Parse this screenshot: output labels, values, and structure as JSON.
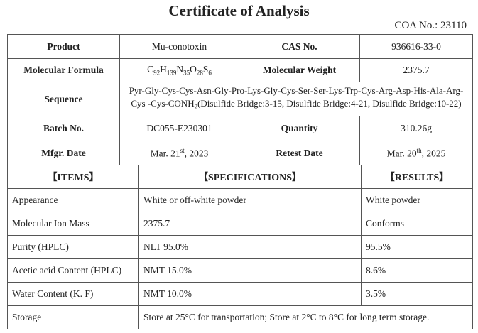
{
  "header": {
    "title": "Certificate of Analysis",
    "coa_no": "COA No.: 23110"
  },
  "info": {
    "product_label": "Product",
    "product": "Mu-conotoxin",
    "cas_label": "CAS No.",
    "cas": "936616-33-0",
    "formula_label": "Molecular Formula",
    "formula": [
      "C",
      "92",
      "H",
      "139",
      "N",
      "35",
      "O",
      "28",
      "S",
      "6"
    ],
    "mw_label": "Molecular Weight",
    "mw": "2375.7",
    "sequence_label": "Sequence",
    "sequence": [
      "Pyr-Gly-Cys-Cys-Asn-Gly-Pro-Lys-Gly-Cys-Ser-Ser-Lys-Trp-Cys-Arg-Asp-His-Ala-Arg-Cys -Cys-CONH",
      "2",
      "(Disulfide Bridge:3-15, Disulfide Bridge:4-21, Disulfide Bridge:10-22)"
    ],
    "batch_label": "Batch No.",
    "batch": "DC055-E230301",
    "quantity_label": "Quantity",
    "quantity": "310.26g",
    "mfgr_label": "Mfgr. Date",
    "mfgr": [
      "Mar. 21",
      "st",
      ", 2023"
    ],
    "retest_label": "Retest Date",
    "retest": [
      "Mar. 20",
      "th",
      ", 2025"
    ]
  },
  "results": {
    "headers": [
      "【ITEMS】",
      "【SPECIFICATIONS】",
      "【RESULTS】"
    ],
    "rows": [
      [
        "Appearance",
        "White or off-white powder",
        "White powder"
      ],
      [
        "Molecular Ion Mass",
        "2375.7",
        "Conforms"
      ],
      [
        "Purity (HPLC)",
        "NLT 95.0%",
        "95.5%"
      ],
      [
        "Acetic acid Content (HPLC)",
        "NMT 15.0%",
        "8.6%"
      ],
      [
        "Water Content (K. F)",
        "NMT 10.0%",
        "3.5%"
      ]
    ],
    "storage": {
      "item": "Storage",
      "spec": "Store at 25°C for transportation; Store at 2°C to 8°C for long term storage."
    }
  }
}
